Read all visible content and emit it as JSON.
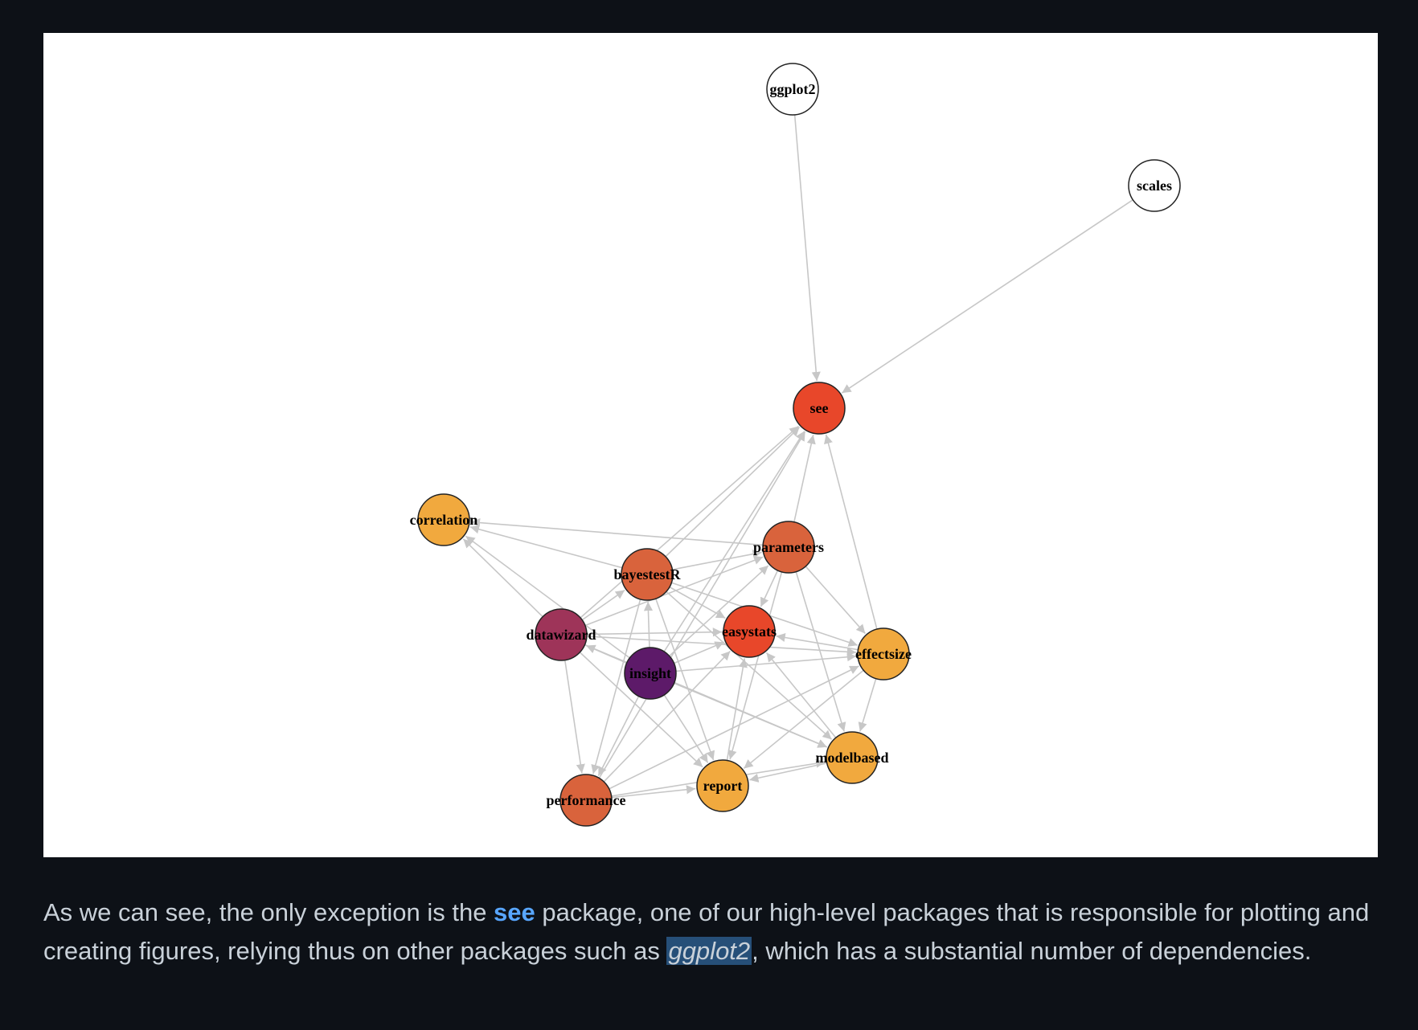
{
  "graph": {
    "nodes": [
      {
        "id": "ggplot2",
        "label": "ggplot2",
        "color": "#ffffff"
      },
      {
        "id": "scales",
        "label": "scales",
        "color": "#ffffff"
      },
      {
        "id": "see",
        "label": "see",
        "color": "#e8472a"
      },
      {
        "id": "correlation",
        "label": "correlation",
        "color": "#f1a93e"
      },
      {
        "id": "parameters",
        "label": "parameters",
        "color": "#d9633c"
      },
      {
        "id": "bayestestR",
        "label": "bayestestR",
        "color": "#d9633c"
      },
      {
        "id": "easystats",
        "label": "easystats",
        "color": "#e8472a"
      },
      {
        "id": "datawizard",
        "label": "datawizard",
        "color": "#9e3459"
      },
      {
        "id": "effectsize",
        "label": "effectsize",
        "color": "#f1a93e"
      },
      {
        "id": "insight",
        "label": "insight",
        "color": "#5d1a69"
      },
      {
        "id": "modelbased",
        "label": "modelbased",
        "color": "#f1a93e"
      },
      {
        "id": "report",
        "label": "report",
        "color": "#f1a93e"
      },
      {
        "id": "performance",
        "label": "performance",
        "color": "#d9633c"
      }
    ],
    "edges": [
      [
        "ggplot2",
        "see"
      ],
      [
        "scales",
        "see"
      ],
      [
        "bayestestR",
        "see"
      ],
      [
        "parameters",
        "see"
      ],
      [
        "insight",
        "see"
      ],
      [
        "effectsize",
        "see"
      ],
      [
        "performance",
        "see"
      ],
      [
        "datawizard",
        "see"
      ],
      [
        "parameters",
        "correlation"
      ],
      [
        "bayestestR",
        "correlation"
      ],
      [
        "datawizard",
        "correlation"
      ],
      [
        "insight",
        "correlation"
      ],
      [
        "datawizard",
        "bayestestR"
      ],
      [
        "insight",
        "bayestestR"
      ],
      [
        "bayestestR",
        "parameters"
      ],
      [
        "datawizard",
        "parameters"
      ],
      [
        "insight",
        "parameters"
      ],
      [
        "insight",
        "datawizard"
      ],
      [
        "bayestestR",
        "easystats"
      ],
      [
        "parameters",
        "easystats"
      ],
      [
        "datawizard",
        "easystats"
      ],
      [
        "insight",
        "easystats"
      ],
      [
        "effectsize",
        "easystats"
      ],
      [
        "modelbased",
        "easystats"
      ],
      [
        "performance",
        "easystats"
      ],
      [
        "report",
        "easystats"
      ],
      [
        "parameters",
        "effectsize"
      ],
      [
        "bayestestR",
        "effectsize"
      ],
      [
        "datawizard",
        "effectsize"
      ],
      [
        "insight",
        "effectsize"
      ],
      [
        "parameters",
        "modelbased"
      ],
      [
        "effectsize",
        "modelbased"
      ],
      [
        "insight",
        "modelbased"
      ],
      [
        "bayestestR",
        "modelbased"
      ],
      [
        "datawizard",
        "modelbased"
      ],
      [
        "bayestestR",
        "report"
      ],
      [
        "parameters",
        "report"
      ],
      [
        "effectsize",
        "report"
      ],
      [
        "insight",
        "report"
      ],
      [
        "datawizard",
        "report"
      ],
      [
        "modelbased",
        "report"
      ],
      [
        "performance",
        "report"
      ],
      [
        "bayestestR",
        "performance"
      ],
      [
        "datawizard",
        "performance"
      ],
      [
        "insight",
        "performance"
      ],
      [
        "performance",
        "effectsize"
      ],
      [
        "performance",
        "modelbased"
      ]
    ]
  },
  "paragraph": {
    "before_link": "As we can see, the only exception is the ",
    "link_text": "see",
    "after_link": " package, one of our high-level packages that is responsible for plotting and creating figures, relying thus on other packages such as ",
    "emphasis": "ggplot2",
    "after_emphasis": ", which has a substantial number of dependencies."
  }
}
